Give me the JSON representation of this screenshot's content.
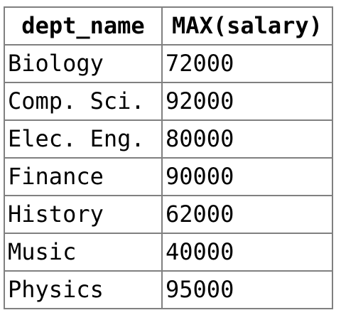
{
  "table": {
    "headers": [
      "dept_name",
      "MAX(salary)"
    ],
    "rows": [
      [
        "Biology",
        "72000"
      ],
      [
        "Comp. Sci.",
        "92000"
      ],
      [
        "Elec. Eng.",
        "80000"
      ],
      [
        "Finance",
        "90000"
      ],
      [
        "History",
        "62000"
      ],
      [
        "Music",
        "40000"
      ],
      [
        "Physics",
        "95000"
      ]
    ]
  },
  "colors": {
    "border": "#808080",
    "text": "#000000",
    "background": "#ffffff"
  }
}
